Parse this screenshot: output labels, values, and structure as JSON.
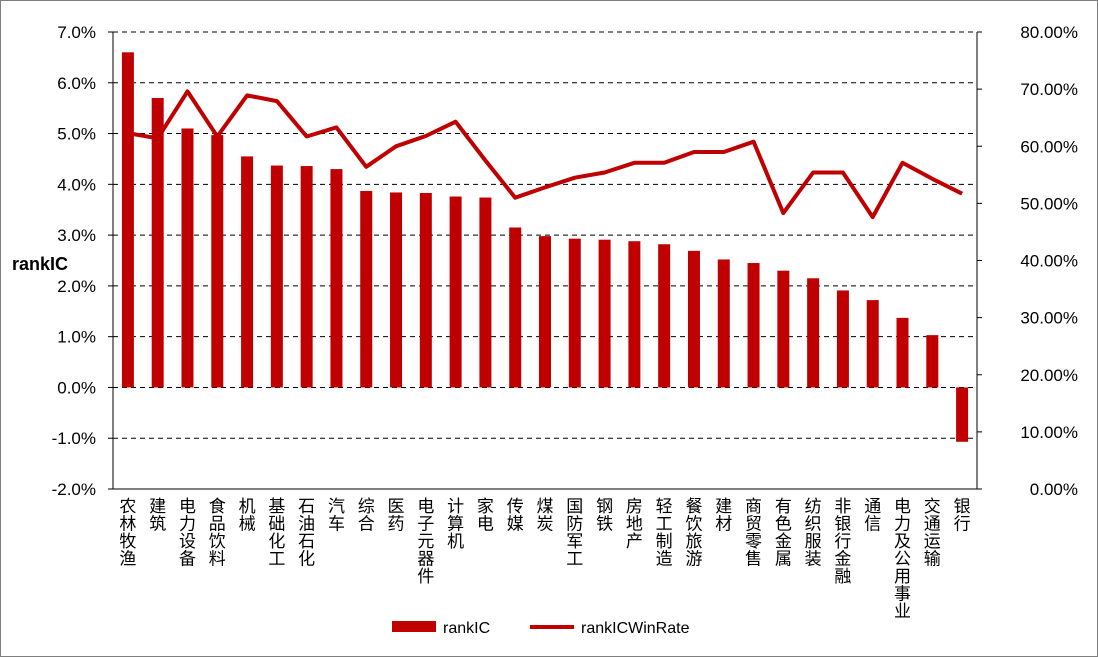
{
  "chart_data": {
    "type": "bar",
    "categories": [
      "农林牧渔",
      "建筑",
      "电力设备",
      "食品饮料",
      "机械",
      "基础化工",
      "石油石化",
      "汽车",
      "综合",
      "医药",
      "电子元器件",
      "计算机",
      "家电",
      "传媒",
      "煤炭",
      "国防军工",
      "钢铁",
      "房地产",
      "轻工制造",
      "餐饮旅游",
      "建材",
      "商贸零售",
      "有色金属",
      "纺织服装",
      "非银行金融",
      "通信",
      "电力及公用事业",
      "交通运输",
      "银行"
    ],
    "series": [
      {
        "name": "rankIC",
        "type": "bar",
        "axis": "left",
        "color": "#c00000",
        "values": [
          6.6,
          5.7,
          5.1,
          4.97,
          4.55,
          4.37,
          4.36,
          4.3,
          3.87,
          3.84,
          3.83,
          3.76,
          3.74,
          3.15,
          2.98,
          2.93,
          2.91,
          2.88,
          2.82,
          2.69,
          2.52,
          2.45,
          2.3,
          2.15,
          1.91,
          1.72,
          1.37,
          1.03,
          -1.07
        ]
      },
      {
        "name": "rankICWinRate",
        "type": "line",
        "axis": "right",
        "color": "#c00000",
        "values": [
          62.3,
          61.4,
          69.6,
          61.7,
          68.9,
          67.9,
          61.7,
          63.3,
          56.4,
          60.0,
          61.8,
          64.3,
          57.5,
          51.0,
          52.8,
          54.5,
          55.4,
          57.1,
          57.1,
          59.0,
          59.0,
          60.8,
          48.3,
          55.4,
          55.4,
          47.6,
          57.1,
          54.3,
          51.7
        ]
      }
    ],
    "ylabel": "rankIC",
    "ylim": [
      -2.0,
      7.0
    ],
    "y_ticks": [
      "7.0%",
      "6.0%",
      "5.0%",
      "4.0%",
      "3.0%",
      "2.0%",
      "1.0%",
      "0.0%",
      "-1.0%",
      "-2.0%"
    ],
    "y2lim": [
      0,
      80
    ],
    "y2_ticks": [
      "80.00%",
      "70.00%",
      "60.00%",
      "50.00%",
      "40.00%",
      "30.00%",
      "20.00%",
      "10.00%",
      "0.00%"
    ],
    "grid": "dashed-horizontal",
    "legend": {
      "position": "bottom",
      "entries": [
        "rankIC",
        "rankICWinRate"
      ]
    }
  }
}
